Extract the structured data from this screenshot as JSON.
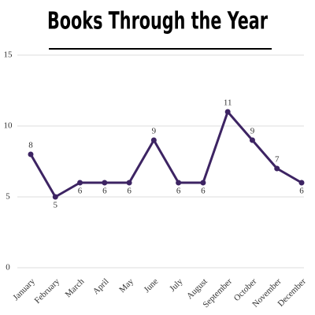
{
  "chart_data": {
    "type": "line",
    "title": "Books Through the Year",
    "categories": [
      "January",
      "February",
      "March",
      "April",
      "May",
      "June",
      "July",
      "August",
      "September",
      "October",
      "November",
      "December"
    ],
    "values": [
      8,
      5,
      6,
      6,
      6,
      9,
      6,
      6,
      11,
      9,
      7,
      6
    ],
    "color": "#3d2463",
    "ylim": [
      0,
      15
    ],
    "yticks": [
      0,
      5,
      10,
      15
    ],
    "grid": true
  }
}
